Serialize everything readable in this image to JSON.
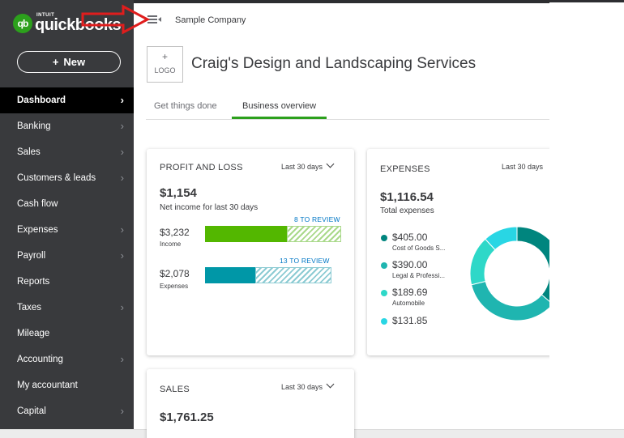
{
  "app": {
    "logo_badge": "qb",
    "logo_intuit": "INTUIT",
    "logo_name": "quickbooks"
  },
  "new_button": {
    "plus": "+",
    "label": "New"
  },
  "sidebar": {
    "items": [
      {
        "label": "Dashboard",
        "active": true,
        "chevron": true
      },
      {
        "label": "Banking",
        "chevron": true
      },
      {
        "label": "Sales",
        "chevron": true
      },
      {
        "label": "Customers & leads",
        "chevron": true
      },
      {
        "label": "Cash flow",
        "chevron": false
      },
      {
        "label": "Expenses",
        "chevron": true
      },
      {
        "label": "Payroll",
        "chevron": true
      },
      {
        "label": "Reports",
        "chevron": false
      },
      {
        "label": "Taxes",
        "chevron": true
      },
      {
        "label": "Mileage",
        "chevron": false
      },
      {
        "label": "Accounting",
        "chevron": true
      },
      {
        "label": "My accountant",
        "chevron": false
      },
      {
        "label": "Capital",
        "chevron": true
      }
    ]
  },
  "header": {
    "company": "Sample Company",
    "logo_plus": "+",
    "logo_label": "LOGO",
    "business_name": "Craig's Design and Landscaping Services"
  },
  "tabs": [
    {
      "label": "Get things done",
      "active": false
    },
    {
      "label": "Business overview",
      "active": true
    }
  ],
  "profit_loss": {
    "title": "PROFIT AND LOSS",
    "period": "Last 30 days",
    "net": "$1,154",
    "net_label": "Net income for last 30 days",
    "income": {
      "review": "8 TO REVIEW",
      "amount": "$3,232",
      "label": "Income",
      "fill_fraction": 0.6
    },
    "expenses": {
      "review": "13 TO REVIEW",
      "amount": "$2,078",
      "label": "Expenses",
      "fill_fraction": 0.4
    },
    "colors": {
      "income": "#53b700",
      "income_hatch": "#a9d98a",
      "expenses": "#0097a7",
      "expenses_hatch": "#8ccbd3"
    }
  },
  "expenses_card": {
    "title": "EXPENSES",
    "period": "Last 30 days",
    "total": "$1,116.54",
    "total_label": "Total expenses",
    "items": [
      {
        "value": "$405.00",
        "label": "Cost of Goods S...",
        "color": "#00857e"
      },
      {
        "value": "$390.00",
        "label": "Legal & Professi...",
        "color": "#1fb5b0"
      },
      {
        "value": "$189.69",
        "label": "Automobile",
        "color": "#2ed8c8"
      },
      {
        "value": "$131.85",
        "label": "",
        "color": "#29d6e4"
      }
    ]
  },
  "sales_card": {
    "title": "SALES",
    "period": "Last 30 days",
    "total": "$1,761.25"
  }
}
